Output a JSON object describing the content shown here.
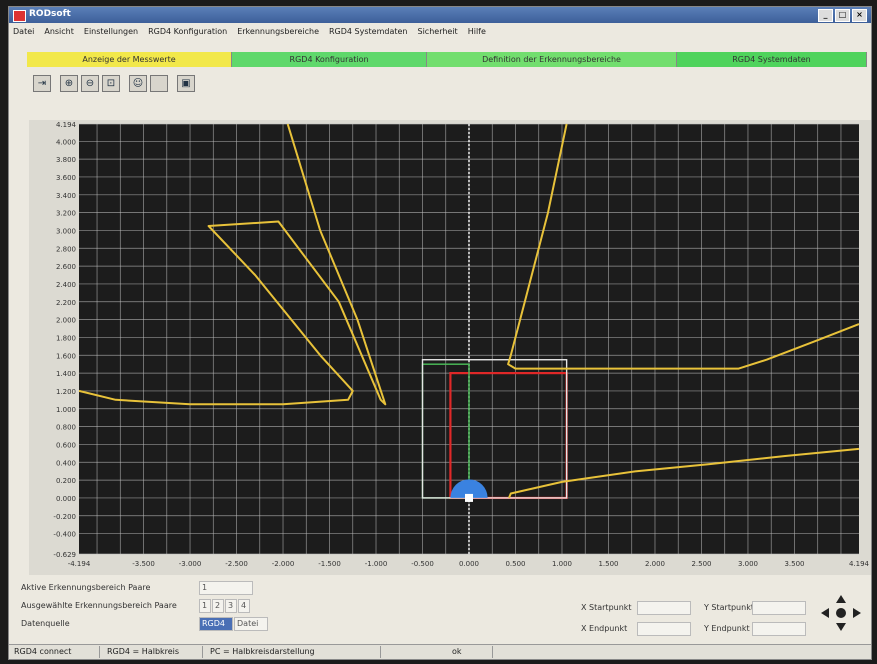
{
  "window": {
    "title": "RODsoft",
    "controls": [
      "_",
      "□",
      "×"
    ]
  },
  "menu": [
    "Datei",
    "Ansicht",
    "Einstellungen",
    "RGD4 Konfiguration",
    "Erkennungsbereiche",
    "RGD4 Systemdaten",
    "Sicherheit",
    "Hilfe"
  ],
  "tabs": [
    {
      "label": "Anzeige der Messwerte",
      "color": "#f2e84a"
    },
    {
      "label": "RGD4 Konfiguration",
      "color": "#5fd86b"
    },
    {
      "label": "Definition der Erkennungsbereiche",
      "color": "#72de6e"
    },
    {
      "label": "RGD4 Systemdaten",
      "color": "#4fd35c"
    }
  ],
  "toolbar": {
    "icons": [
      "exit-icon",
      "zoom-in-icon",
      "zoom-out-icon",
      "zoom-fit-icon",
      "user-icon",
      "blank-icon",
      "save-icon"
    ]
  },
  "chart_data": {
    "type": "line",
    "title": "",
    "xlabel": "",
    "ylabel": "",
    "xlim": [
      -4.194,
      4.194
    ],
    "ylim": [
      -0.629,
      4.194
    ],
    "grid": true,
    "x_tick_labels": [
      "-4.194",
      "-3.500",
      "-3.000",
      "-2.500",
      "-2.000",
      "-1.500",
      "-1.000",
      "-0.500",
      "0.000",
      "0.500",
      "1.000",
      "1.500",
      "2.000",
      "2.500",
      "3.000",
      "3.500",
      "4.194"
    ],
    "x_ticks": [
      -4.194,
      -3.5,
      -3.0,
      -2.5,
      -2.0,
      -1.5,
      -1.0,
      -0.5,
      0.0,
      0.5,
      1.0,
      1.5,
      2.0,
      2.5,
      3.0,
      3.5,
      4.194
    ],
    "y_tick_labels": [
      "4.194",
      "4.000",
      "3.800",
      "3.600",
      "3.400",
      "3.200",
      "3.000",
      "2.800",
      "2.600",
      "2.400",
      "2.200",
      "2.000",
      "1.800",
      "1.600",
      "1.400",
      "1.200",
      "1.000",
      "0.800",
      "0.600",
      "0.400",
      "0.200",
      "0.000",
      "-0.200",
      "-0.400",
      "-0.629"
    ],
    "y_ticks": [
      4.194,
      4.0,
      3.8,
      3.6,
      3.4,
      3.2,
      3.0,
      2.8,
      2.6,
      2.4,
      2.2,
      2.0,
      1.8,
      1.6,
      1.4,
      1.2,
      1.0,
      0.8,
      0.6,
      0.4,
      0.2,
      0.0,
      -0.2,
      -0.4,
      -0.629
    ],
    "colors": {
      "background": "#1c1c1c",
      "grid": "#bdbdbd",
      "scan": "#e8c23a",
      "red_zone": "#e02828",
      "green_zone": "#4cc05a",
      "white_zone": "#e6e6e6",
      "sensor": "#3a82e0"
    },
    "series": [
      {
        "color": "#e8c23a",
        "points": [
          [
            -4.194,
            1.2
          ],
          [
            -3.8,
            1.1
          ],
          [
            -3.0,
            1.05
          ],
          [
            -2.0,
            1.05
          ],
          [
            -1.3,
            1.1
          ],
          [
            -1.25,
            1.2
          ],
          [
            -1.6,
            1.6
          ],
          [
            -2.3,
            2.5
          ],
          [
            -2.8,
            3.05
          ],
          [
            -2.05,
            3.1
          ],
          [
            -1.4,
            2.2
          ],
          [
            -0.95,
            1.1
          ],
          [
            -0.9,
            1.05
          ],
          [
            -1.2,
            2.0
          ],
          [
            -1.6,
            3.0
          ],
          [
            -1.95,
            4.194
          ]
        ]
      },
      {
        "color": "#e8c23a",
        "points": [
          [
            1.05,
            4.194
          ],
          [
            0.85,
            3.2
          ],
          [
            0.6,
            2.2
          ],
          [
            0.45,
            1.6
          ],
          [
            0.42,
            1.5
          ],
          [
            0.5,
            1.45
          ],
          [
            1.5,
            1.45
          ],
          [
            2.9,
            1.45
          ],
          [
            3.2,
            1.55
          ],
          [
            3.7,
            1.75
          ],
          [
            4.194,
            1.95
          ]
        ]
      },
      {
        "color": "#e8c23a",
        "points": [
          [
            0.43,
            0.0
          ],
          [
            0.45,
            0.05
          ],
          [
            1.0,
            0.18
          ],
          [
            1.8,
            0.3
          ],
          [
            2.6,
            0.38
          ],
          [
            3.4,
            0.47
          ],
          [
            4.194,
            0.55
          ]
        ]
      }
    ],
    "zones": [
      {
        "name": "red",
        "x": [
          -0.2,
          1.05
        ],
        "y": [
          0.0,
          1.4
        ],
        "color": "#e02828"
      },
      {
        "name": "green",
        "x": [
          -0.5,
          0.0
        ],
        "y": [
          0.0,
          1.5
        ],
        "color": "#4cc05a"
      },
      {
        "name": "white",
        "x": [
          -0.5,
          1.05
        ],
        "y": [
          0.0,
          1.55
        ],
        "color": "#e6e6e6"
      }
    ]
  },
  "controls": {
    "active_zone_label": "Aktive Erkennungsbereich Paare",
    "active_zone_value": "1",
    "selected_zone_label": "Ausgewählte Erkennungsbereich Paare",
    "selected_zone_options": [
      "1",
      "2",
      "3",
      "4"
    ],
    "source_label": "Datenquelle",
    "source_rgd4": "RGD4",
    "source_file": "Datei",
    "x_start_label": "X Startpunkt",
    "x_end_label": "X Endpunkt",
    "y_start_label": "Y Startpunkt",
    "y_end_label": "Y Endpunkt"
  },
  "status": {
    "connection": "RGD4 connect",
    "rgd4_mode": "RGD4 = Halbkreis",
    "pc_mode": "PC = Halbkreisdarstellung",
    "extra": "ok"
  }
}
